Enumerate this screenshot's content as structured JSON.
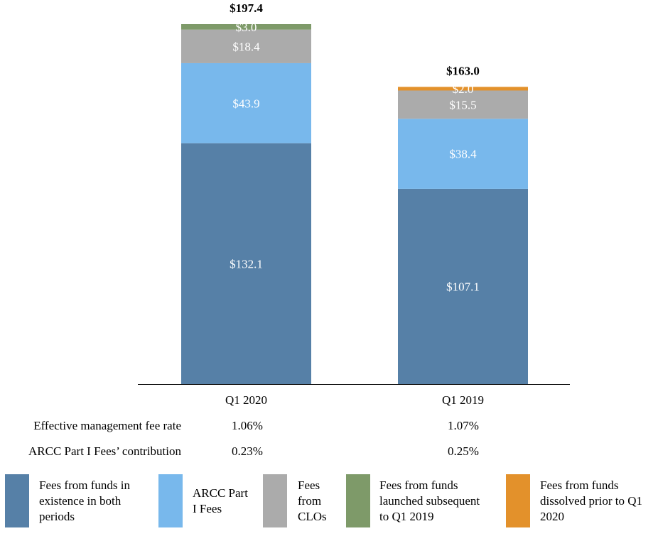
{
  "chart_data": {
    "type": "bar",
    "stacked": true,
    "categories": [
      "Q1 2020",
      "Q1 2019"
    ],
    "series": [
      {
        "name": "Fees from funds in existence in both periods",
        "values": [
          132.1,
          107.1
        ],
        "labels": [
          "$132.1",
          "$107.1"
        ],
        "color": "#5680a7"
      },
      {
        "name": "ARCC Part I Fees",
        "values": [
          43.9,
          38.4
        ],
        "labels": [
          "$43.9",
          "$38.4"
        ],
        "color": "#78b8ec"
      },
      {
        "name": "Fees from CLOs",
        "values": [
          18.4,
          15.5
        ],
        "labels": [
          "$18.4",
          "$15.5"
        ],
        "color": "#ababab"
      },
      {
        "name": "Fees from funds launched subsequent to Q1 2019",
        "values": [
          3.0,
          0
        ],
        "labels": [
          "$3.0",
          ""
        ],
        "color": "#7e9a69"
      },
      {
        "name": "Fees from funds dissolved prior to Q1 2020",
        "values": [
          0,
          2.0
        ],
        "labels": [
          "",
          "$2.0"
        ],
        "color": "#e3912b"
      }
    ],
    "totals": [
      197.4,
      163.0
    ],
    "total_labels": [
      "$197.4",
      "$163.0"
    ],
    "ylim": [
      0,
      197.4
    ],
    "title": "",
    "xlabel": "",
    "ylabel": ""
  },
  "table": {
    "rows": [
      {
        "label": "Effective management fee rate",
        "values": [
          "1.06%",
          "1.07%"
        ]
      },
      {
        "label": "ARCC Part I Fees’ contribution",
        "values": [
          "0.23%",
          "0.25%"
        ]
      }
    ]
  },
  "legend": {
    "items": [
      {
        "lines": [
          "Fees from funds in",
          "existence in both",
          "periods"
        ],
        "color": "#5680a7"
      },
      {
        "lines": [
          "ARCC Part",
          "I Fees"
        ],
        "color": "#78b8ec"
      },
      {
        "lines": [
          "Fees",
          "from",
          "CLOs"
        ],
        "color": "#ababab"
      },
      {
        "lines": [
          "Fees from funds",
          "launched subsequent",
          "to Q1 2019"
        ],
        "color": "#7e9a69"
      },
      {
        "lines": [
          "Fees from funds",
          "dissolved prior to Q1",
          "2020"
        ],
        "color": "#e3912b"
      }
    ]
  }
}
